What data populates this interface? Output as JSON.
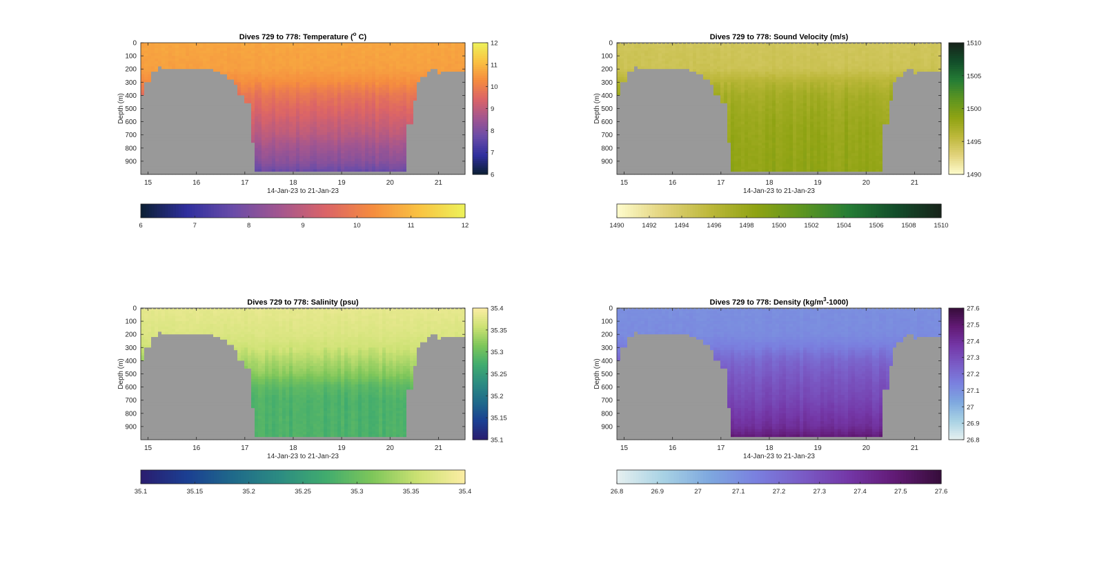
{
  "chart_data": [
    {
      "type": "heatmap",
      "id": "temperature",
      "title": "Dives 729 to 778: Temperature (° C)",
      "title_parts": [
        "Dives 729 to 778: Temperature (",
        "o",
        " C)"
      ],
      "xlabel": "14-Jan-23 to 21-Jan-23",
      "ylabel": "Depth (m)",
      "xlim": [
        14.85,
        21.55
      ],
      "ylim": [
        0,
        1000
      ],
      "x_ticks": [
        "15",
        "16",
        "17",
        "18",
        "19",
        "20",
        "21"
      ],
      "y_ticks": [
        "0",
        "100",
        "200",
        "300",
        "400",
        "500",
        "600",
        "700",
        "800",
        "900"
      ],
      "colormap": "thermal",
      "colormap_stops": [
        "#0b1f33",
        "#2f2f9e",
        "#6a4ca8",
        "#a3568f",
        "#db6467",
        "#f58c3f",
        "#f9c242",
        "#edf25a"
      ],
      "clim": [
        6,
        12
      ],
      "vertical_colorbar_ticks": [
        "6",
        "7",
        "8",
        "9",
        "10",
        "11",
        "12"
      ],
      "horizontal_colorbar_ticks": [
        "6",
        "7",
        "8",
        "9",
        "10",
        "11",
        "12"
      ],
      "profile": [
        [
          0,
          10.7
        ],
        [
          200,
          10.6
        ],
        [
          300,
          10.3
        ],
        [
          400,
          9.8
        ],
        [
          500,
          9.5
        ],
        [
          600,
          9.2
        ],
        [
          700,
          8.9
        ],
        [
          800,
          8.5
        ],
        [
          900,
          8.2
        ],
        [
          980,
          7.7
        ]
      ],
      "land_color": "#999999",
      "surface_dashed": false
    },
    {
      "type": "heatmap",
      "id": "sound-velocity",
      "title": "Dives 729 to 778: Sound Velocity (m/s)",
      "xlabel": "14-Jan-23 to 21-Jan-23",
      "ylabel": "Depth (m)",
      "xlim": [
        14.85,
        21.55
      ],
      "ylim": [
        0,
        1000
      ],
      "x_ticks": [
        "15",
        "16",
        "17",
        "18",
        "19",
        "20",
        "21"
      ],
      "y_ticks": [
        "0",
        "100",
        "200",
        "300",
        "400",
        "500",
        "600",
        "700",
        "800",
        "900"
      ],
      "colormap": "speed",
      "colormap_stops": [
        "#fefccd",
        "#e2d37c",
        "#bdb83b",
        "#8fa313",
        "#5d9520",
        "#257d35",
        "#124d2a",
        "#17231a"
      ],
      "clim": [
        1490,
        1510
      ],
      "vertical_colorbar_ticks": [
        "1490",
        "1495",
        "1500",
        "1505",
        "1510"
      ],
      "horizontal_colorbar_ticks": [
        "1490",
        "1492",
        "1494",
        "1496",
        "1498",
        "1500",
        "1502",
        "1504",
        "1506",
        "1508",
        "1510"
      ],
      "profile": [
        [
          0,
          1494.3
        ],
        [
          200,
          1494.6
        ],
        [
          300,
          1496.2
        ],
        [
          400,
          1497.2
        ],
        [
          500,
          1497.6
        ],
        [
          600,
          1497.9
        ],
        [
          700,
          1498.1
        ],
        [
          800,
          1498.2
        ],
        [
          900,
          1498.3
        ],
        [
          980,
          1498.4
        ]
      ],
      "land_color": "#999999",
      "surface_dashed": true
    },
    {
      "type": "heatmap",
      "id": "salinity",
      "title": "Dives 729 to 778: Salinity (psu)",
      "xlabel": "14-Jan-23 to 21-Jan-23",
      "ylabel": "Depth (m)",
      "xlim": [
        14.85,
        21.55
      ],
      "ylim": [
        0,
        1000
      ],
      "x_ticks": [
        "15",
        "16",
        "17",
        "18",
        "19",
        "20",
        "21"
      ],
      "y_ticks": [
        "0",
        "100",
        "200",
        "300",
        "400",
        "500",
        "600",
        "700",
        "800",
        "900"
      ],
      "colormap": "haline",
      "colormap_stops": [
        "#2a1d6f",
        "#1b3f92",
        "#1f6a8a",
        "#2c8c82",
        "#41ac6e",
        "#7ec65a",
        "#cde274",
        "#fceda4"
      ],
      "clim": [
        35.1,
        35.4
      ],
      "vertical_colorbar_ticks": [
        "35.1",
        "35.15",
        "35.2",
        "35.25",
        "35.3",
        "35.35",
        "35.4"
      ],
      "horizontal_colorbar_ticks": [
        "35.1",
        "35.15",
        "35.2",
        "35.25",
        "35.3",
        "35.35",
        "35.4"
      ],
      "profile": [
        [
          0,
          35.38
        ],
        [
          200,
          35.37
        ],
        [
          300,
          35.36
        ],
        [
          400,
          35.34
        ],
        [
          500,
          35.32
        ],
        [
          600,
          35.29
        ],
        [
          700,
          35.28
        ],
        [
          800,
          35.28
        ],
        [
          900,
          35.28
        ],
        [
          980,
          35.28
        ]
      ],
      "land_color": "#999999",
      "surface_dashed": true
    },
    {
      "type": "heatmap",
      "id": "density",
      "title": "Dives 729 to 778: Density (kg/m³-1000)",
      "title_parts": [
        "Dives 729 to 778: Density (kg/m",
        "3",
        "-1000)"
      ],
      "xlabel": "14-Jan-23 to 21-Jan-23",
      "ylabel": "Depth (m)",
      "xlim": [
        14.85,
        21.55
      ],
      "ylim": [
        0,
        1000
      ],
      "x_ticks": [
        "15",
        "16",
        "17",
        "18",
        "19",
        "20",
        "21"
      ],
      "y_ticks": [
        "0",
        "100",
        "200",
        "300",
        "400",
        "500",
        "600",
        "700",
        "800",
        "900"
      ],
      "colormap": "dense",
      "colormap_stops": [
        "#e6f0f0",
        "#a8d2e4",
        "#7ea8df",
        "#7a80df",
        "#7a5cc6",
        "#7437a7",
        "#621a75",
        "#360d3a"
      ],
      "clim": [
        26.8,
        27.6
      ],
      "vertical_colorbar_ticks": [
        "26.8",
        "26.9",
        "27",
        "27.1",
        "27.2",
        "27.3",
        "27.4",
        "27.5",
        "27.6"
      ],
      "horizontal_colorbar_ticks": [
        "26.8",
        "26.9",
        "27",
        "27.1",
        "27.2",
        "27.3",
        "27.4",
        "27.5",
        "27.6"
      ],
      "profile": [
        [
          0,
          27.1
        ],
        [
          200,
          27.11
        ],
        [
          300,
          27.15
        ],
        [
          400,
          27.22
        ],
        [
          500,
          27.26
        ],
        [
          600,
          27.29
        ],
        [
          700,
          27.32
        ],
        [
          800,
          27.36
        ],
        [
          900,
          27.4
        ],
        [
          980,
          27.48
        ]
      ],
      "land_color": "#999999",
      "surface_dashed": true
    }
  ]
}
